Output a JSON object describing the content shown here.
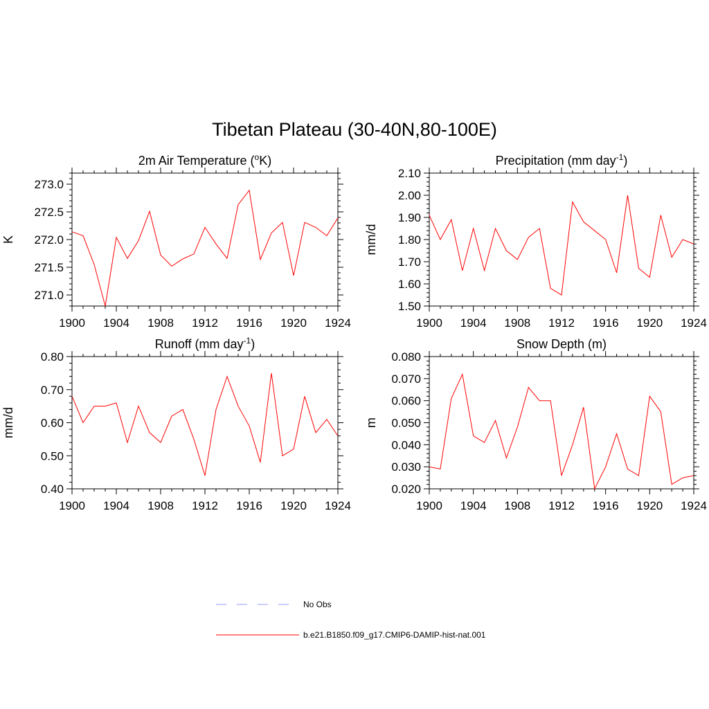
{
  "figure": {
    "title": "Tibetan Plateau (30-40N,80-100E)"
  },
  "legend": [
    {
      "label": "No Obs",
      "color": "#9999ff",
      "dash": true
    },
    {
      "label": "b.e21.B1850.f09_g17.CMIP6-DAMIP-hist-nat.001",
      "color": "#ff0000",
      "dash": false
    }
  ],
  "chart_data": [
    {
      "type": "line",
      "title": "2m Air Temperature (oK)",
      "title_parts": [
        "2m Air Temperature (",
        "o",
        "K)"
      ],
      "ylabel": "K",
      "xlim": [
        1900,
        1924
      ],
      "ylim": [
        270.8,
        273.2
      ],
      "xticks": [
        "1900",
        "1904",
        "1908",
        "1912",
        "1916",
        "1920",
        "1924"
      ],
      "yticks": [
        "271.0",
        "271.5",
        "272.0",
        "272.5",
        "273.0"
      ],
      "ytick_values": [
        271.0,
        271.5,
        272.0,
        272.5,
        273.0
      ],
      "series": [
        {
          "color": "#ff0000",
          "x": [
            1900,
            1901,
            1902,
            1903,
            1904,
            1905,
            1906,
            1907,
            1908,
            1909,
            1910,
            1911,
            1912,
            1913,
            1914,
            1915,
            1916,
            1917,
            1918,
            1919,
            1920,
            1921,
            1922,
            1923,
            1924
          ],
          "values": [
            272.14,
            272.07,
            271.55,
            270.8,
            272.04,
            271.66,
            271.98,
            272.51,
            271.72,
            271.52,
            271.65,
            271.74,
            272.22,
            271.92,
            271.66,
            272.63,
            272.89,
            271.64,
            272.12,
            272.31,
            271.35,
            272.31,
            272.22,
            272.07,
            272.39
          ]
        }
      ]
    },
    {
      "type": "line",
      "title": "Precipitation (mm day-1)",
      "title_parts": [
        "Precipitation (mm day",
        "-1",
        ")"
      ],
      "ylabel": "mm/d",
      "xlim": [
        1900,
        1924
      ],
      "ylim": [
        1.5,
        2.1
      ],
      "xticks": [
        "1900",
        "1904",
        "1908",
        "1912",
        "1916",
        "1920",
        "1924"
      ],
      "yticks": [
        "1.50",
        "1.60",
        "1.70",
        "1.80",
        "1.90",
        "2.00",
        "2.10"
      ],
      "ytick_values": [
        1.5,
        1.6,
        1.7,
        1.8,
        1.9,
        2.0,
        2.1
      ],
      "series": [
        {
          "color": "#ff0000",
          "x": [
            1900,
            1901,
            1902,
            1903,
            1904,
            1905,
            1906,
            1907,
            1908,
            1909,
            1910,
            1911,
            1912,
            1913,
            1914,
            1915,
            1916,
            1917,
            1918,
            1919,
            1920,
            1921,
            1922,
            1923,
            1924
          ],
          "values": [
            1.91,
            1.8,
            1.89,
            1.66,
            1.85,
            1.66,
            1.85,
            1.75,
            1.71,
            1.81,
            1.85,
            1.58,
            1.55,
            1.97,
            1.88,
            1.84,
            1.8,
            1.65,
            2.0,
            1.67,
            1.63,
            1.91,
            1.72,
            1.8,
            1.78
          ]
        }
      ]
    },
    {
      "type": "line",
      "title": "Runoff (mm day-1)",
      "title_parts": [
        "Runoff (mm day",
        "-1",
        ")"
      ],
      "ylabel": "mm/d",
      "xlim": [
        1900,
        1924
      ],
      "ylim": [
        0.4,
        0.8
      ],
      "xticks": [
        "1900",
        "1904",
        "1908",
        "1912",
        "1916",
        "1920",
        "1924"
      ],
      "yticks": [
        "0.40",
        "0.50",
        "0.60",
        "0.70",
        "0.80"
      ],
      "ytick_values": [
        0.4,
        0.5,
        0.6,
        0.7,
        0.8
      ],
      "series": [
        {
          "color": "#ff0000",
          "x": [
            1900,
            1901,
            1902,
            1903,
            1904,
            1905,
            1906,
            1907,
            1908,
            1909,
            1910,
            1911,
            1912,
            1913,
            1914,
            1915,
            1916,
            1917,
            1918,
            1919,
            1920,
            1921,
            1922,
            1923,
            1924
          ],
          "values": [
            0.68,
            0.6,
            0.65,
            0.65,
            0.66,
            0.54,
            0.65,
            0.57,
            0.54,
            0.62,
            0.64,
            0.55,
            0.44,
            0.64,
            0.74,
            0.65,
            0.59,
            0.48,
            0.75,
            0.5,
            0.52,
            0.68,
            0.57,
            0.61,
            0.56
          ]
        }
      ]
    },
    {
      "type": "line",
      "title": "Snow Depth (m)",
      "title_parts": [
        "Snow Depth (m)",
        "",
        ""
      ],
      "ylabel": "m",
      "xlim": [
        1900,
        1924
      ],
      "ylim": [
        0.02,
        0.08
      ],
      "xticks": [
        "1900",
        "1904",
        "1908",
        "1912",
        "1916",
        "1920",
        "1924"
      ],
      "yticks": [
        "0.020",
        "0.030",
        "0.040",
        "0.050",
        "0.060",
        "0.070",
        "0.080"
      ],
      "ytick_values": [
        0.02,
        0.03,
        0.04,
        0.05,
        0.06,
        0.07,
        0.08
      ],
      "series": [
        {
          "color": "#ff0000",
          "x": [
            1900,
            1901,
            1902,
            1903,
            1904,
            1905,
            1906,
            1907,
            1908,
            1909,
            1910,
            1911,
            1912,
            1913,
            1914,
            1915,
            1916,
            1917,
            1918,
            1919,
            1920,
            1921,
            1922,
            1923,
            1924
          ],
          "values": [
            0.03,
            0.029,
            0.061,
            0.072,
            0.044,
            0.041,
            0.051,
            0.034,
            0.048,
            0.066,
            0.06,
            0.06,
            0.026,
            0.04,
            0.057,
            0.02,
            0.03,
            0.045,
            0.029,
            0.026,
            0.062,
            0.055,
            0.022,
            0.025,
            0.026
          ]
        }
      ]
    }
  ]
}
